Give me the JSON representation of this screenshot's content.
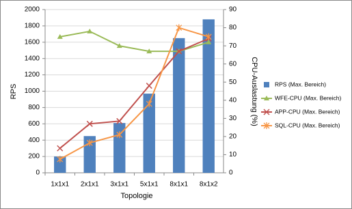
{
  "chart_data": {
    "type": "bar-line",
    "categories": [
      "1x1x1",
      "2x1x1",
      "3x1x1",
      "5x1x1",
      "8x1x1",
      "8x1x2"
    ],
    "x_label": "Topologie",
    "y_label": "RPS",
    "y2_label": "CPU-Auslastung (%)",
    "ylim": [
      0,
      2000
    ],
    "yticks": [
      0,
      200,
      400,
      600,
      800,
      1000,
      1200,
      1400,
      1600,
      1800,
      2000
    ],
    "y2lim": [
      0,
      90
    ],
    "y2ticks": [
      0,
      10,
      20,
      30,
      40,
      50,
      60,
      70,
      80,
      90
    ],
    "grid": true,
    "legend": "right",
    "series": [
      {
        "name": "RPS (Max. Bereich)",
        "kind": "bar",
        "color": "#4f81bd",
        "values": [
          200,
          450,
          610,
          970,
          1650,
          1880
        ]
      },
      {
        "name": "WFE-CPU (Max. Bereich)",
        "kind": "line",
        "marker": "triangle",
        "axis": "y2",
        "color": "#9bbb59",
        "values": [
          75,
          78,
          70,
          67,
          67,
          72
        ]
      },
      {
        "name": "APP-CPU (Max. Bereich)",
        "kind": "line",
        "marker": "x",
        "axis": "y2",
        "color": "#c0504d",
        "values": [
          13.5,
          27,
          28.5,
          48,
          67,
          74
        ]
      },
      {
        "name": "SQL-CPU (Max. Bereich)",
        "kind": "line",
        "marker": "star",
        "axis": "y2",
        "color": "#f79646",
        "values": [
          7.5,
          16.5,
          21,
          38,
          80,
          75
        ]
      }
    ]
  }
}
